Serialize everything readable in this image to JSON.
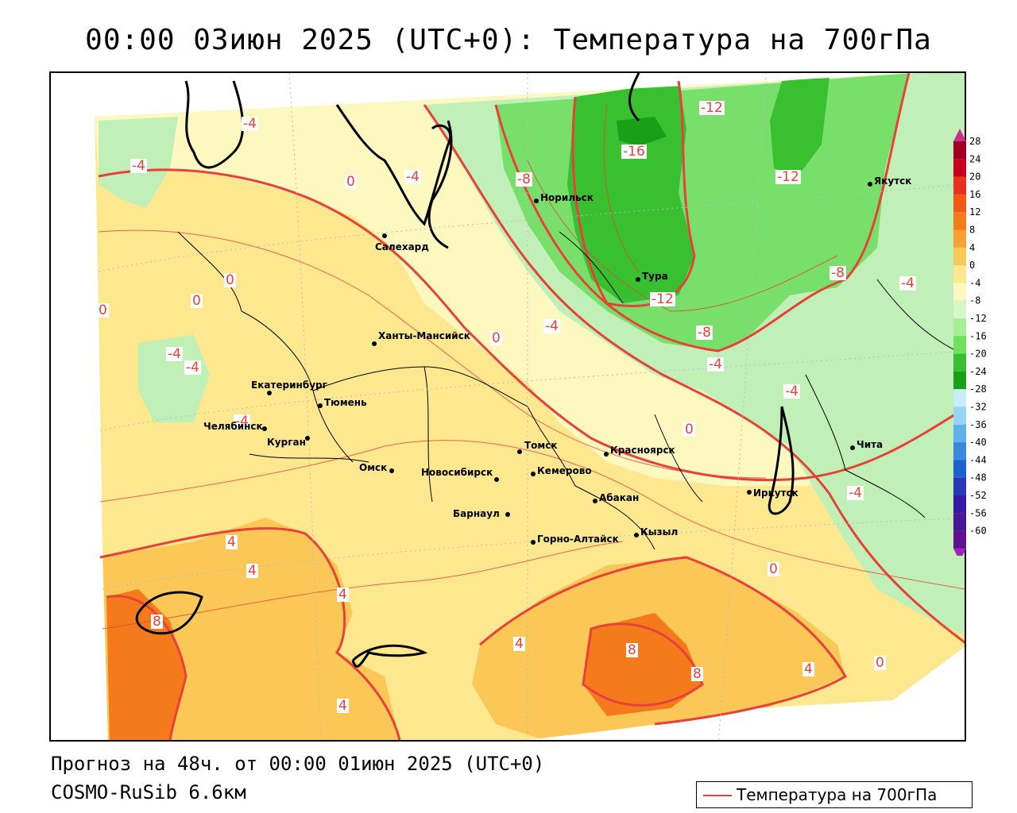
{
  "title": "00:00 03июн 2025 (UTC+0): Температура на 700гПа",
  "footer": {
    "forecast": "Прогноз на 48ч. от 00:00 01июн 2025 (UTC+0)",
    "model": "COSMO-RuSib 6.6км"
  },
  "legend": {
    "label": "Температура на 700гПа",
    "line_color": "#e8413a"
  },
  "colorbar": {
    "ticks": [
      "28",
      "24",
      "20",
      "16",
      "12",
      "8",
      "4",
      "0",
      "-4",
      "-8",
      "-12",
      "-16",
      "-20",
      "-24",
      "-28",
      "-32",
      "-36",
      "-40",
      "-44",
      "-48",
      "-52",
      "-56",
      "-60"
    ],
    "colors": [
      "#a00020",
      "#c8001e",
      "#e8301a",
      "#f05a14",
      "#f57a1c",
      "#f8a030",
      "#fbc858",
      "#fde890",
      "#fdf7c0",
      "#d8f6cc",
      "#a8ee98",
      "#6ee05c",
      "#38c030",
      "#18a018",
      "#c8ecf8",
      "#98d4f4",
      "#60b0ec",
      "#3888e0",
      "#2060d0",
      "#2838b8",
      "#3818a8",
      "#481898",
      "#601090"
    ]
  },
  "cities": [
    {
      "name": "Салехард"
    },
    {
      "name": "Норильск"
    },
    {
      "name": "Якутск"
    },
    {
      "name": "Тура"
    },
    {
      "name": "Ханты-Мансийск"
    },
    {
      "name": "Екатеринбург"
    },
    {
      "name": "Тюмень"
    },
    {
      "name": "Челябинск"
    },
    {
      "name": "Курган"
    },
    {
      "name": "Омск"
    },
    {
      "name": "Новосибирск"
    },
    {
      "name": "Томск"
    },
    {
      "name": "Кемерово"
    },
    {
      "name": "Красноярск"
    },
    {
      "name": "Барнаул"
    },
    {
      "name": "Абакан"
    },
    {
      "name": "Горно-Алтайск"
    },
    {
      "name": "Кызыл"
    },
    {
      "name": "Иркутск"
    },
    {
      "name": "Чита"
    }
  ],
  "contour_labels": [
    "-4",
    "-4",
    "0",
    "-4",
    "-8",
    "-16",
    "-12",
    "-12",
    "-8",
    "-4",
    "-12",
    "-8",
    "-4",
    "-4",
    "0",
    "-4",
    "-4",
    "0",
    "0",
    "-4",
    "0",
    "0",
    "-4",
    "-4",
    "4",
    "4",
    "4",
    "8",
    "4",
    "8",
    "8",
    "4",
    "0",
    "4",
    "0"
  ]
}
